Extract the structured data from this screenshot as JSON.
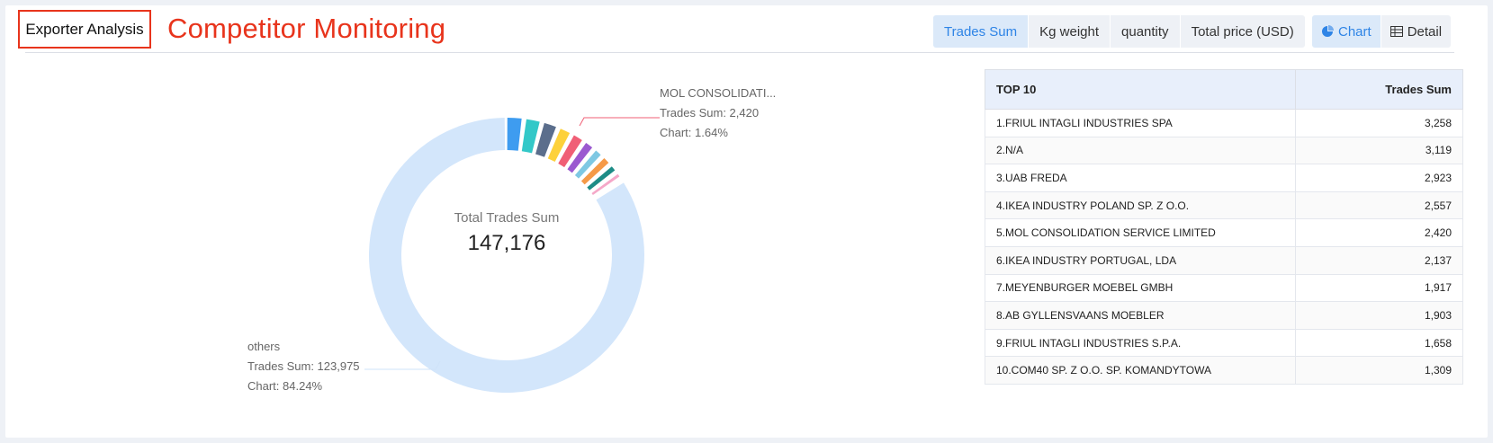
{
  "header": {
    "title_box": "Exporter Analysis",
    "subtitle": "Competitor Monitoring"
  },
  "metric_tabs": [
    {
      "label": "Trades Sum",
      "active": true
    },
    {
      "label": "Kg weight",
      "active": false
    },
    {
      "label": "quantity",
      "active": false
    },
    {
      "label": "Total price (USD)",
      "active": false
    }
  ],
  "view_tabs": [
    {
      "label": "Chart",
      "icon": "pie-chart-icon",
      "active": true
    },
    {
      "label": "Detail",
      "icon": "table-icon",
      "active": false
    }
  ],
  "donut": {
    "center_label": "Total Trades Sum",
    "center_value": "147,176",
    "callouts": [
      {
        "name": "MOL CONSOLIDATI...",
        "value_line": "Trades Sum: 2,420",
        "pct_line": "Chart: 1.64%"
      },
      {
        "name": "others",
        "value_line": "Trades Sum: 123,975",
        "pct_line": "Chart: 84.24%"
      }
    ]
  },
  "chart_data": {
    "type": "pie",
    "title": "",
    "center_label": "Total Trades Sum",
    "total": 147176,
    "categories": [
      "FRIUL INTAGLI INDUSTRIES SPA",
      "N/A",
      "UAB FREDA",
      "IKEA INDUSTRY POLAND SP. Z O.O.",
      "MOL CONSOLIDATION SERVICE LIMITED",
      "IKEA INDUSTRY PORTUGAL, LDA",
      "MEYENBURGER MOEBEL GMBH",
      "AB GYLLENSVAANS MOEBLER",
      "FRIUL INTAGLI INDUSTRIES S.P.A.",
      "COM40 SP. Z O.O. SP. KOMANDYTOWA",
      "others"
    ],
    "values": [
      3258,
      3119,
      2923,
      2557,
      2420,
      2137,
      1917,
      1903,
      1658,
      1309,
      123975
    ],
    "colors": [
      "#3e9cf0",
      "#33c8c8",
      "#5b6e8c",
      "#fdd13a",
      "#f05f76",
      "#9b59d0",
      "#7ec8e3",
      "#f59a48",
      "#1d8c86",
      "#f5a8c8",
      "#d3e6fb"
    ]
  },
  "table": {
    "header_left": "TOP 10",
    "header_right": "Trades Sum",
    "rows": [
      {
        "name": "1.FRIUL INTAGLI INDUSTRIES SPA",
        "value": "3,258"
      },
      {
        "name": "2.N/A",
        "value": "3,119"
      },
      {
        "name": "3.UAB FREDA",
        "value": "2,923"
      },
      {
        "name": "4.IKEA INDUSTRY POLAND SP. Z O.O.",
        "value": "2,557"
      },
      {
        "name": "5.MOL CONSOLIDATION SERVICE LIMITED",
        "value": "2,420"
      },
      {
        "name": "6.IKEA INDUSTRY PORTUGAL, LDA",
        "value": "2,137"
      },
      {
        "name": "7.MEYENBURGER MOEBEL GMBH",
        "value": "1,917"
      },
      {
        "name": "8.AB GYLLENSVAANS MOEBLER",
        "value": "1,903"
      },
      {
        "name": "9.FRIUL INTAGLI INDUSTRIES S.P.A.",
        "value": "1,658"
      },
      {
        "name": "10.COM40 SP. Z O.O. SP. KOMANDYTOWA",
        "value": "1,309"
      }
    ]
  }
}
